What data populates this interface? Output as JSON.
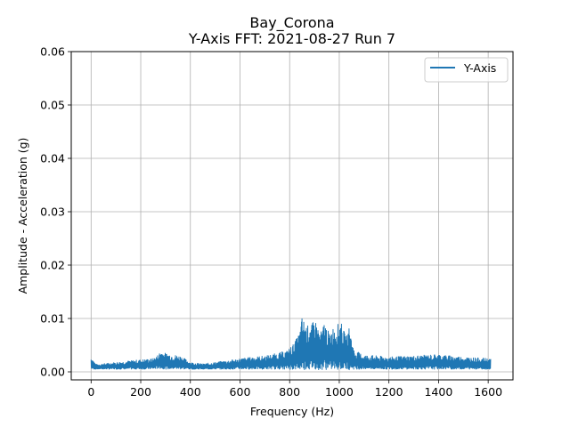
{
  "chart_data": {
    "type": "line",
    "title": "Bay_Corona",
    "subtitle": "Y-Axis FFT: 2021-08-27 Run 7",
    "xlabel": "Frequency (Hz)",
    "ylabel": "Amplitude - Acceleration (g)",
    "xlim": [
      -80,
      1700
    ],
    "ylim": [
      -0.0015,
      0.06
    ],
    "xticks": [
      "0",
      "200",
      "400",
      "600",
      "800",
      "1000",
      "1200",
      "1400",
      "1600"
    ],
    "yticks": [
      "0.00",
      "0.01",
      "0.02",
      "0.03",
      "0.04",
      "0.05",
      "0.06"
    ],
    "grid": true,
    "legend_position": "top-right",
    "series": [
      {
        "name": "Y-Axis",
        "color": "#1f77b4",
        "x_range": [
          0,
          1610
        ],
        "envelope": {
          "x": [
            0,
            5,
            20,
            100,
            180,
            250,
            270,
            280,
            300,
            360,
            400,
            450,
            500,
            560,
            600,
            650,
            700,
            750,
            790,
            820,
            840,
            850,
            860,
            870,
            880,
            890,
            900,
            910,
            920,
            930,
            940,
            950,
            960,
            970,
            980,
            990,
            1000,
            1010,
            1020,
            1030,
            1040,
            1060,
            1100,
            1200,
            1300,
            1400,
            1450,
            1500,
            1560,
            1600,
            1610
          ],
          "max": [
            0.0028,
            0.0025,
            0.0014,
            0.0018,
            0.0022,
            0.0025,
            0.0032,
            0.004,
            0.0035,
            0.003,
            0.0018,
            0.0015,
            0.0018,
            0.0022,
            0.0025,
            0.0028,
            0.003,
            0.0035,
            0.004,
            0.0055,
            0.0075,
            0.0103,
            0.0095,
            0.0085,
            0.0092,
            0.0088,
            0.0102,
            0.009,
            0.0078,
            0.0075,
            0.0098,
            0.0082,
            0.0072,
            0.008,
            0.0088,
            0.0085,
            0.0095,
            0.009,
            0.0075,
            0.0068,
            0.0085,
            0.004,
            0.0032,
            0.0028,
            0.003,
            0.0033,
            0.003,
            0.0028,
            0.0026,
            0.0025,
            0.0024
          ],
          "min": [
            0.0005,
            0.0005,
            0.0005,
            0.0005,
            0.0005,
            0.0005,
            0.0006,
            0.0006,
            0.0005,
            0.0005,
            0.0005,
            0.0005,
            0.0005,
            0.0005,
            0.0005,
            0.0005,
            0.0005,
            0.0005,
            0.0005,
            0.0004,
            0.0004,
            0.0004,
            0.0004,
            0.0004,
            0.0004,
            0.0004,
            0.0004,
            0.0004,
            0.0004,
            0.0004,
            0.0004,
            0.0004,
            0.0004,
            0.0004,
            0.0004,
            0.0004,
            0.0004,
            0.0004,
            0.0004,
            0.0004,
            0.0004,
            0.0005,
            0.0005,
            0.0005,
            0.0005,
            0.0005,
            0.0005,
            0.0005,
            0.0005,
            0.0005,
            0.0005
          ]
        }
      }
    ]
  }
}
